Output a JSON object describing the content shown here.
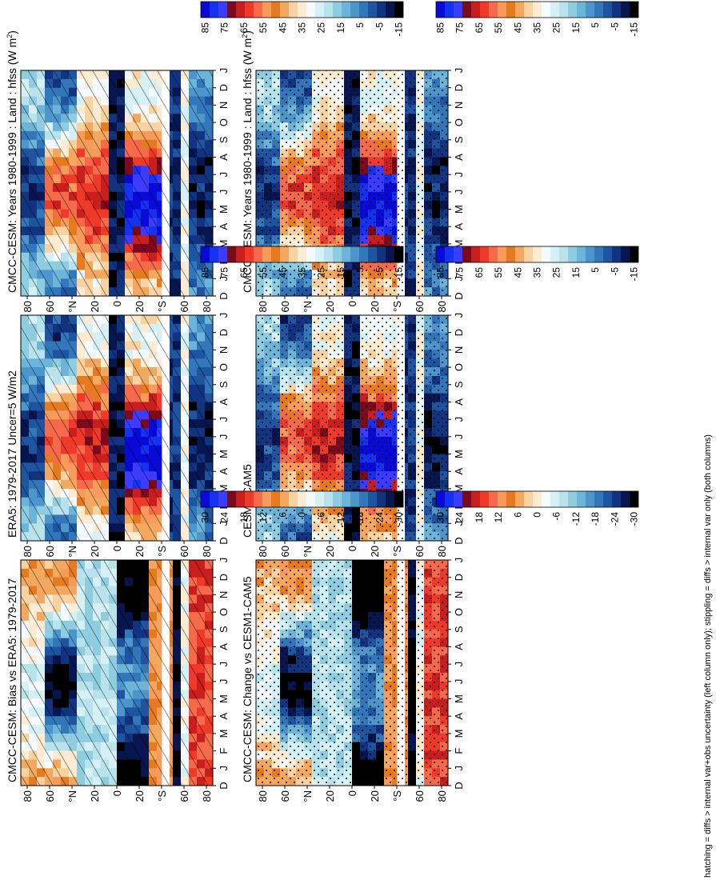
{
  "footnote": "hatching = diffs > internal var+obs uncertainty (left column only); stippling = diffs > internal var only (both columns)",
  "colorbars": [
    {
      "labels": [
        "85",
        "75",
        "65",
        "55",
        "45",
        "35",
        "25",
        "15",
        "5",
        "-5",
        "-15"
      ],
      "colors": [
        "#0a0ad8",
        "#1432f0",
        "#3c3cff",
        "#7a0a1e",
        "#c81e1e",
        "#ef3a2a",
        "#f56a4a",
        "#f79a5a",
        "#e67a1e",
        "#f2a85e",
        "#f8d2a0",
        "#fdebd2",
        "#f4fbff",
        "#d6f1f5",
        "#b8e3ec",
        "#8ecde0",
        "#6cb4d8",
        "#4c96cc",
        "#3377bb",
        "#1f55a0",
        "#123480",
        "#081650",
        "#000000"
      ]
    },
    {
      "labels": [
        "30",
        "24",
        "18",
        "12",
        "6",
        "0",
        "-6",
        "-12",
        "-18",
        "-24",
        "-30"
      ],
      "colors": [
        "#0a0ad8",
        "#1432f0",
        "#3c3cff",
        "#7a0a1e",
        "#c81e1e",
        "#ef3a2a",
        "#f56a4a",
        "#f79a5a",
        "#e67a1e",
        "#f2a85e",
        "#f8d2a0",
        "#fdebd2",
        "#f4fbff",
        "#d6f1f5",
        "#b8e3ec",
        "#8ecde0",
        "#6cb4d8",
        "#4c96cc",
        "#3377bb",
        "#1f55a0",
        "#123480",
        "#081650",
        "#000000"
      ]
    }
  ],
  "axes": {
    "months": [
      "D",
      "J",
      "F",
      "M",
      "A",
      "M",
      "J",
      "J",
      "A",
      "S",
      "O",
      "N",
      "D",
      "J"
    ],
    "lat_labels": [
      "80",
      "60",
      "°N",
      "20",
      "0",
      "20",
      "°S",
      "60",
      "80"
    ]
  },
  "chart_data": [
    {
      "type": "heatmap",
      "title": "CMCC-CESM: Years 1980-1999 : Land : hfss (W m",
      "units_sup": "2",
      "units_close": ")",
      "xlabel": "",
      "ylabel": "",
      "scale": "absolute",
      "pattern": "hatch",
      "row": 0,
      "col": 0,
      "seed": 11
    },
    {
      "type": "heatmap",
      "title": "CMCC-CESM: Years 1980-1999 : Land : hfss (W m",
      "units_sup": "2",
      "units_close": ")",
      "xlabel": "",
      "ylabel": "",
      "scale": "absolute",
      "pattern": "stipple",
      "row": 0,
      "col": 1,
      "seed": 11
    },
    {
      "type": "heatmap",
      "title": "ERA5: 1979-2017 Uncer=5 W/m2",
      "units_sup": "",
      "units_close": "",
      "xlabel": "",
      "ylabel": "",
      "scale": "absolute",
      "pattern": "hatch",
      "row": 1,
      "col": 0,
      "seed": 23
    },
    {
      "type": "heatmap",
      "title": "CESM1-CAM5",
      "units_sup": "",
      "units_close": "",
      "xlabel": "",
      "ylabel": "",
      "scale": "absolute",
      "pattern": "stipple",
      "row": 1,
      "col": 1,
      "seed": 37
    },
    {
      "type": "heatmap",
      "title": "CMCC-CESM: Bias vs ERA5: 1979-2017",
      "units_sup": "",
      "units_close": "",
      "xlabel": "",
      "ylabel": "",
      "scale": "difference",
      "pattern": "hatch",
      "row": 2,
      "col": 0,
      "seed": 41
    },
    {
      "type": "heatmap",
      "title": "CMCC-CESM: Change vs CESM1-CAM5",
      "units_sup": "",
      "units_close": "",
      "xlabel": "",
      "ylabel": "",
      "scale": "difference",
      "pattern": "stipple",
      "row": 2,
      "col": 1,
      "seed": 53
    }
  ]
}
